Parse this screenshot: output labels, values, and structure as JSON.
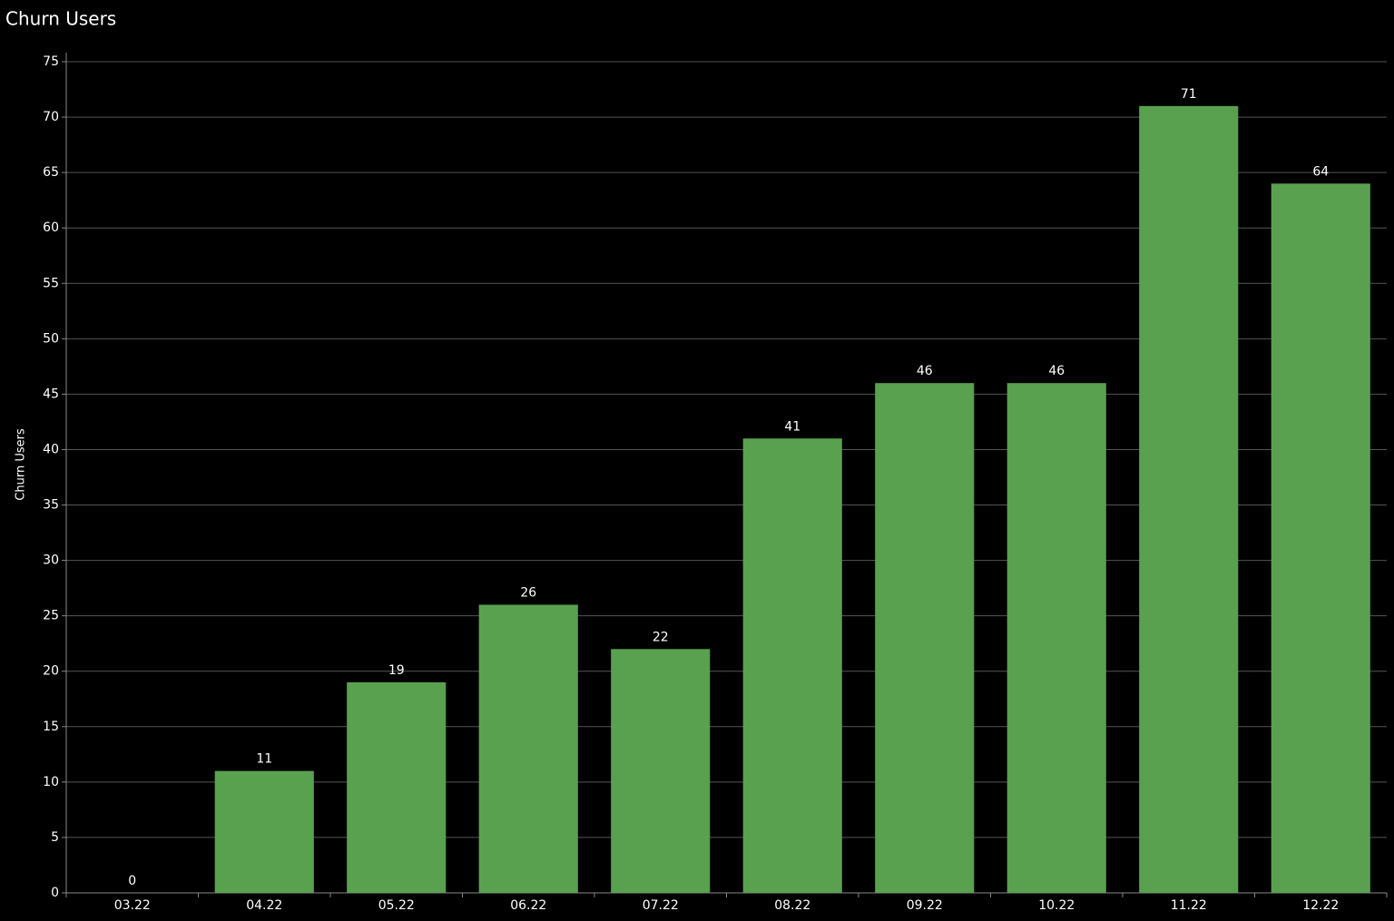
{
  "chart_data": {
    "type": "bar",
    "title": "Churn Users",
    "y_label": "Churn Users",
    "categories": [
      "03.22",
      "04.22",
      "05.22",
      "06.22",
      "07.22",
      "08.22",
      "09.22",
      "10.22",
      "11.22",
      "12.22"
    ],
    "values": [
      0,
      11,
      19,
      26,
      22,
      41,
      46,
      46,
      71,
      64
    ],
    "color": "#59a14f",
    "ylim": [
      0,
      75
    ],
    "yticks": [
      0,
      5,
      10,
      15,
      20,
      25,
      30,
      35,
      40,
      45,
      50,
      55,
      60,
      65,
      70,
      75
    ],
    "grid": true
  }
}
